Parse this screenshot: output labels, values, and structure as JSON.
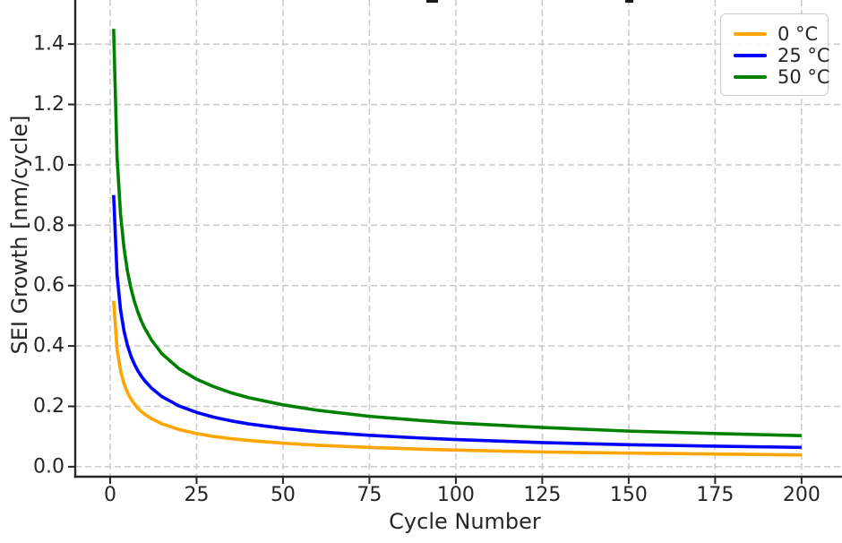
{
  "chart_data": {
    "type": "line",
    "title": "",
    "xlabel": "Cycle Number",
    "ylabel": "SEI Growth [nm/cycle]",
    "x_ticks": [
      0,
      25,
      50,
      75,
      100,
      125,
      150,
      175,
      200
    ],
    "x_tick_labels": [
      "0",
      "25",
      "50",
      "75",
      "100",
      "125",
      "150",
      "175",
      "200"
    ],
    "y_ticks": [
      0.0,
      0.2,
      0.4,
      0.6,
      0.8,
      1.0,
      1.2,
      1.4
    ],
    "y_tick_labels": [
      "0.0",
      "0.2",
      "0.4",
      "0.6",
      "0.8",
      "1.0",
      "1.2",
      "1.4"
    ],
    "xlim": [
      -10.1,
      211.7
    ],
    "ylim": [
      -0.033,
      1.546
    ],
    "grid": true,
    "grid_style": "dashed",
    "legend_position": "upper right",
    "x": [
      1,
      2,
      3,
      4,
      5,
      6,
      7,
      8,
      9,
      10,
      12,
      15,
      20,
      25,
      30,
      35,
      40,
      50,
      60,
      75,
      90,
      100,
      125,
      150,
      175,
      200
    ],
    "series": [
      {
        "name": "0 °C",
        "color": "#FFA500",
        "values": [
          0.55,
          0.389,
          0.318,
          0.275,
          0.246,
          0.225,
          0.208,
          0.194,
          0.183,
          0.174,
          0.159,
          0.142,
          0.123,
          0.11,
          0.1,
          0.093,
          0.087,
          0.078,
          0.071,
          0.064,
          0.058,
          0.055,
          0.049,
          0.045,
          0.042,
          0.039
        ]
      },
      {
        "name": "25 °C",
        "color": "#0000FF",
        "values": [
          0.9,
          0.636,
          0.52,
          0.45,
          0.402,
          0.367,
          0.34,
          0.318,
          0.3,
          0.285,
          0.26,
          0.232,
          0.201,
          0.18,
          0.164,
          0.152,
          0.142,
          0.127,
          0.116,
          0.104,
          0.095,
          0.09,
          0.08,
          0.073,
          0.068,
          0.064
        ]
      },
      {
        "name": "50 °C",
        "color": "#008000",
        "values": [
          1.45,
          1.025,
          0.837,
          0.725,
          0.648,
          0.592,
          0.548,
          0.513,
          0.483,
          0.459,
          0.419,
          0.374,
          0.324,
          0.29,
          0.265,
          0.245,
          0.229,
          0.205,
          0.187,
          0.167,
          0.153,
          0.145,
          0.13,
          0.118,
          0.11,
          0.103
        ]
      }
    ]
  },
  "colors": {
    "grid": "#c9c9c9",
    "axis": "#262626",
    "text": "#262626",
    "background": "#ffffff"
  }
}
